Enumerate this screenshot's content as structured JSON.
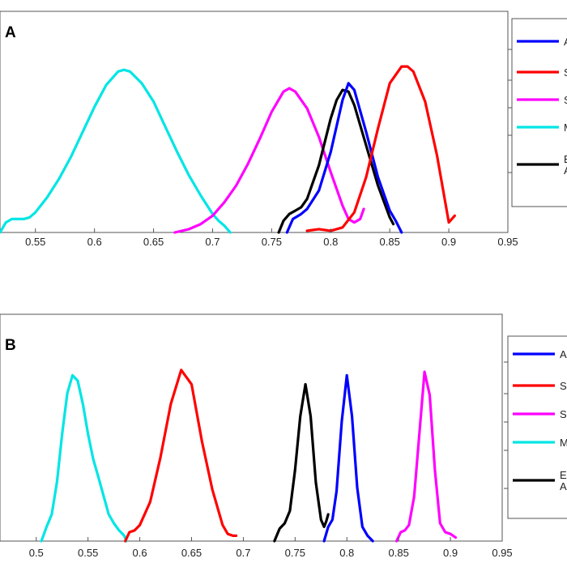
{
  "chart_data": [
    {
      "type": "line",
      "panel_label": "A",
      "xlim": [
        0.52,
        0.95
      ],
      "ylim": [
        0,
        1
      ],
      "xticks": [
        0.55,
        0.6,
        0.65,
        0.7,
        0.75,
        0.8,
        0.85,
        0.9,
        0.95
      ],
      "xtick_labels": [
        "0.55",
        "0.6",
        "0.65",
        "0.7",
        "0.75",
        "0.8",
        "0.85",
        "0.9",
        "0.95"
      ],
      "legend": {
        "placement": "right, clipped",
        "entries": [
          {
            "label": "A",
            "color": "#0000ff"
          },
          {
            "label": "S",
            "color": "#ff0000"
          },
          {
            "label": "S",
            "color": "#ff00ff"
          },
          {
            "label": "M",
            "color": "#00e5e5"
          },
          {
            "label": "E",
            "label2": "A",
            "color": "#000000"
          }
        ]
      },
      "series": [
        {
          "name": "cyan",
          "color": "#00e5e5",
          "x": [
            0.52,
            0.525,
            0.53,
            0.535,
            0.54,
            0.545,
            0.55,
            0.56,
            0.57,
            0.58,
            0.59,
            0.6,
            0.61,
            0.62,
            0.625,
            0.63,
            0.64,
            0.65,
            0.66,
            0.67,
            0.68,
            0.69,
            0.7,
            0.705,
            0.71,
            0.715
          ],
          "y": [
            0.0,
            0.06,
            0.08,
            0.08,
            0.08,
            0.09,
            0.12,
            0.21,
            0.32,
            0.45,
            0.6,
            0.75,
            0.88,
            0.96,
            0.97,
            0.96,
            0.89,
            0.78,
            0.63,
            0.48,
            0.34,
            0.22,
            0.11,
            0.07,
            0.04,
            0.0
          ]
        },
        {
          "name": "magenta",
          "color": "#ff00ff",
          "x": [
            0.668,
            0.68,
            0.69,
            0.7,
            0.71,
            0.72,
            0.73,
            0.74,
            0.75,
            0.76,
            0.765,
            0.77,
            0.78,
            0.79,
            0.8,
            0.81,
            0.815,
            0.82,
            0.825,
            0.828
          ],
          "y": [
            0.0,
            0.02,
            0.05,
            0.1,
            0.18,
            0.28,
            0.41,
            0.56,
            0.72,
            0.84,
            0.86,
            0.84,
            0.74,
            0.57,
            0.36,
            0.16,
            0.08,
            0.06,
            0.08,
            0.14
          ]
        },
        {
          "name": "black",
          "color": "#000000",
          "x": [
            0.756,
            0.76,
            0.765,
            0.77,
            0.775,
            0.78,
            0.79,
            0.8,
            0.805,
            0.81,
            0.815,
            0.82,
            0.83,
            0.84,
            0.85,
            0.853
          ],
          "y": [
            0.0,
            0.07,
            0.11,
            0.13,
            0.15,
            0.2,
            0.4,
            0.68,
            0.79,
            0.85,
            0.84,
            0.76,
            0.52,
            0.28,
            0.09,
            0.05
          ]
        },
        {
          "name": "blue",
          "color": "#0000ff",
          "x": [
            0.763,
            0.768,
            0.775,
            0.78,
            0.79,
            0.8,
            0.81,
            0.815,
            0.82,
            0.83,
            0.84,
            0.85,
            0.855,
            0.86
          ],
          "y": [
            0.0,
            0.08,
            0.11,
            0.14,
            0.25,
            0.48,
            0.79,
            0.89,
            0.85,
            0.6,
            0.33,
            0.13,
            0.07,
            0.0
          ]
        },
        {
          "name": "red",
          "color": "#ff0000",
          "x": [
            0.78,
            0.79,
            0.8,
            0.81,
            0.82,
            0.83,
            0.84,
            0.85,
            0.86,
            0.865,
            0.87,
            0.88,
            0.89,
            0.9,
            0.905
          ],
          "y": [
            0.01,
            0.02,
            0.01,
            0.03,
            0.12,
            0.33,
            0.62,
            0.89,
            0.99,
            0.99,
            0.96,
            0.78,
            0.46,
            0.06,
            0.1
          ]
        }
      ]
    },
    {
      "type": "line",
      "panel_label": "B",
      "xlim": [
        0.465,
        0.95
      ],
      "ylim": [
        0,
        1
      ],
      "xticks": [
        0.5,
        0.55,
        0.6,
        0.65,
        0.7,
        0.75,
        0.8,
        0.85,
        0.9,
        0.95
      ],
      "xtick_labels": [
        "0.5",
        "0.55",
        "0.6",
        "0.65",
        "0.7",
        "0.75",
        "0.8",
        "0.85",
        "0.9",
        "0.95"
      ],
      "legend": {
        "placement": "right, clipped",
        "entries": [
          {
            "label": "A",
            "color": "#0000ff"
          },
          {
            "label": "S",
            "color": "#ff0000"
          },
          {
            "label": "S",
            "color": "#ff00ff"
          },
          {
            "label": "M",
            "color": "#00e5e5"
          },
          {
            "label": "E",
            "label2": "A",
            "color": "#000000"
          }
        ]
      },
      "series": [
        {
          "name": "cyan",
          "color": "#00e5e5",
          "x": [
            0.505,
            0.51,
            0.515,
            0.52,
            0.525,
            0.53,
            0.535,
            0.54,
            0.545,
            0.55,
            0.555,
            0.56,
            0.57,
            0.575,
            0.58,
            0.585,
            0.587
          ],
          "y": [
            0.0,
            0.08,
            0.15,
            0.33,
            0.6,
            0.83,
            0.93,
            0.9,
            0.77,
            0.6,
            0.46,
            0.36,
            0.15,
            0.1,
            0.06,
            0.03,
            0.0
          ]
        },
        {
          "name": "red",
          "color": "#ff0000",
          "x": [
            0.586,
            0.59,
            0.595,
            0.6,
            0.61,
            0.62,
            0.63,
            0.64,
            0.65,
            0.66,
            0.67,
            0.68,
            0.685,
            0.69,
            0.693
          ],
          "y": [
            0.0,
            0.05,
            0.06,
            0.09,
            0.22,
            0.47,
            0.77,
            0.96,
            0.88,
            0.56,
            0.29,
            0.09,
            0.04,
            0.03,
            0.03
          ]
        },
        {
          "name": "black",
          "color": "#000000",
          "x": [
            0.73,
            0.735,
            0.74,
            0.745,
            0.75,
            0.755,
            0.76,
            0.765,
            0.77,
            0.775,
            0.778,
            0.78,
            0.782
          ],
          "y": [
            0.0,
            0.07,
            0.1,
            0.17,
            0.4,
            0.7,
            0.88,
            0.7,
            0.33,
            0.12,
            0.08,
            0.11,
            0.15
          ]
        },
        {
          "name": "blue",
          "color": "#0000ff",
          "x": [
            0.778,
            0.782,
            0.786,
            0.79,
            0.795,
            0.8,
            0.805,
            0.81,
            0.815,
            0.82,
            0.825
          ],
          "y": [
            0.0,
            0.08,
            0.12,
            0.28,
            0.67,
            0.93,
            0.7,
            0.3,
            0.08,
            0.03,
            0.0
          ]
        },
        {
          "name": "magenta",
          "color": "#ff00ff",
          "x": [
            0.848,
            0.852,
            0.856,
            0.86,
            0.865,
            0.87,
            0.875,
            0.88,
            0.885,
            0.89,
            0.895,
            0.9,
            0.905
          ],
          "y": [
            0.0,
            0.05,
            0.06,
            0.09,
            0.25,
            0.6,
            0.95,
            0.82,
            0.4,
            0.1,
            0.05,
            0.04,
            0.02
          ]
        }
      ]
    }
  ]
}
